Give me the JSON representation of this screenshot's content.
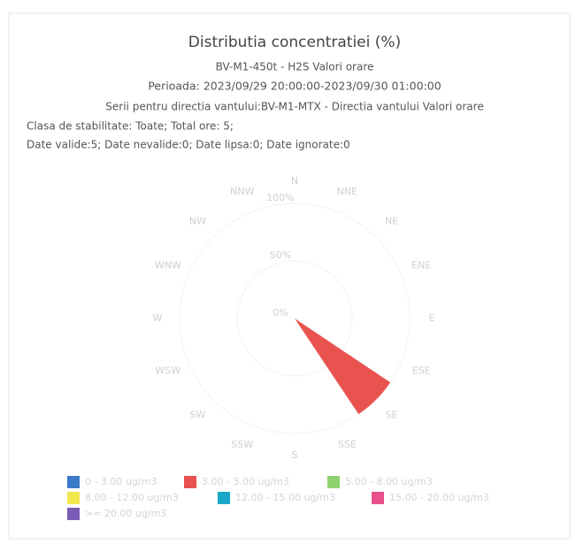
{
  "chart_data": {
    "type": "windrose",
    "title": "Distributia concentratiei (%)",
    "subtitles": [
      "BV-M1-450t - H2S Valori orare",
      "Perioada: 2023/09/29 20:00:00-2023/09/30 01:00:00",
      "Serii pentru directia vantului:BV-M1-MTX - Directia vantului Valori orare"
    ],
    "info": [
      "Clasa de stabilitate: Toate; Total ore: 5;",
      "Date valide:5; Date nevalide:0; Date lipsa:0; Date ignorate:0"
    ],
    "categories": [
      "N",
      "NNE",
      "NE",
      "ENE",
      "E",
      "ESE",
      "SE",
      "SSE",
      "S",
      "SSW",
      "SW",
      "WSW",
      "W",
      "WNW",
      "NW",
      "NNW"
    ],
    "ylim": [
      0,
      100
    ],
    "yticks": [
      {
        "value": 0,
        "label": "0%"
      },
      {
        "value": 50,
        "label": "50%"
      },
      {
        "value": 100,
        "label": "100%"
      }
    ],
    "series": [
      {
        "name": "0 - 3.00 ug/m3",
        "color": "#3c78c8",
        "values": [
          0,
          0,
          0,
          0,
          0,
          0,
          0,
          0,
          0,
          0,
          0,
          0,
          0,
          0,
          0,
          0
        ]
      },
      {
        "name": "3.00 - 5.00 ug/m3",
        "color": "#e8534f",
        "values": [
          0,
          0,
          0,
          0,
          0,
          0,
          100,
          0,
          0,
          0,
          0,
          0,
          0,
          0,
          0,
          0
        ]
      },
      {
        "name": "5.00 - 8.00 ug/m3",
        "color": "#8fd16f",
        "values": [
          0,
          0,
          0,
          0,
          0,
          0,
          0,
          0,
          0,
          0,
          0,
          0,
          0,
          0,
          0,
          0
        ]
      },
      {
        "name": "8.00 - 12.00 ug/m3",
        "color": "#f2e84c",
        "values": [
          0,
          0,
          0,
          0,
          0,
          0,
          0,
          0,
          0,
          0,
          0,
          0,
          0,
          0,
          0,
          0
        ]
      },
      {
        "name": "12.00 - 15.00 ug/m3",
        "color": "#1aa8c8",
        "values": [
          0,
          0,
          0,
          0,
          0,
          0,
          0,
          0,
          0,
          0,
          0,
          0,
          0,
          0,
          0,
          0
        ]
      },
      {
        "name": "15.00 - 20.00 ug/m3",
        "color": "#e8508a",
        "values": [
          0,
          0,
          0,
          0,
          0,
          0,
          0,
          0,
          0,
          0,
          0,
          0,
          0,
          0,
          0,
          0
        ]
      },
      {
        "name": ">= 20.00 ug/m3",
        "color": "#7a5bb5",
        "values": [
          0,
          0,
          0,
          0,
          0,
          0,
          0,
          0,
          0,
          0,
          0,
          0,
          0,
          0,
          0,
          0
        ]
      }
    ]
  }
}
